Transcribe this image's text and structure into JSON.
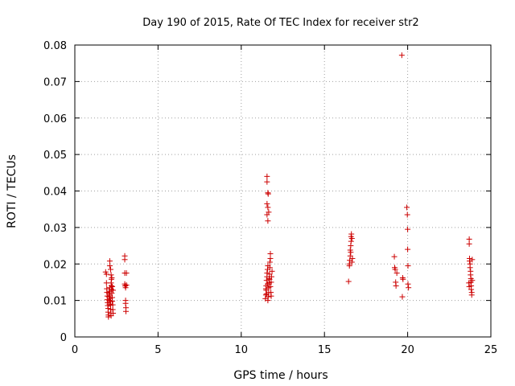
{
  "chart_data": {
    "type": "scatter",
    "title": "Day 190 of 2015, Rate Of TEC Index for receiver str2",
    "xlabel": "GPS time / hours",
    "ylabel": "ROTI / TECUs",
    "xlim": [
      0,
      25
    ],
    "ylim": [
      0,
      0.08
    ],
    "xticks": [
      0,
      5,
      10,
      15,
      20,
      25
    ],
    "xtick_labels": [
      "0",
      "5",
      "10",
      "15",
      "20",
      "25"
    ],
    "yticks": [
      0,
      0.01,
      0.02,
      0.03,
      0.04,
      0.05,
      0.06,
      0.07,
      0.08
    ],
    "ytick_labels": [
      "0",
      "0.01",
      "0.02",
      "0.03",
      "0.04",
      "0.05",
      "0.06",
      "0.07",
      "0.08"
    ],
    "grid": true,
    "marker": "+",
    "color": "#cc0000",
    "series": [
      {
        "name": "ROTI",
        "points": [
          [
            1.85,
            0.0178
          ],
          [
            1.9,
            0.0172
          ],
          [
            1.9,
            0.0148
          ],
          [
            1.92,
            0.0132
          ],
          [
            1.93,
            0.0122
          ],
          [
            1.95,
            0.0112
          ],
          [
            1.95,
            0.0102
          ],
          [
            1.97,
            0.0094
          ],
          [
            1.98,
            0.0086
          ],
          [
            2.0,
            0.0078
          ],
          [
            2.0,
            0.0068
          ],
          [
            2.02,
            0.006
          ],
          [
            2.02,
            0.0055
          ],
          [
            2.05,
            0.012
          ],
          [
            2.05,
            0.011
          ],
          [
            2.07,
            0.01
          ],
          [
            2.08,
            0.009
          ],
          [
            2.1,
            0.0135
          ],
          [
            2.1,
            0.0125
          ],
          [
            2.12,
            0.0115
          ],
          [
            2.12,
            0.0105
          ],
          [
            2.15,
            0.0097
          ],
          [
            2.15,
            0.0087
          ],
          [
            2.15,
            0.0076
          ],
          [
            2.17,
            0.0065
          ],
          [
            2.18,
            0.0058
          ],
          [
            2.18,
            0.0148
          ],
          [
            2.2,
            0.0158
          ],
          [
            2.2,
            0.014
          ],
          [
            2.2,
            0.013
          ],
          [
            2.22,
            0.012
          ],
          [
            2.25,
            0.0108
          ],
          [
            2.25,
            0.0098
          ],
          [
            2.28,
            0.0088
          ],
          [
            2.28,
            0.0075
          ],
          [
            2.3,
            0.0065
          ],
          [
            2.1,
            0.0195
          ],
          [
            2.1,
            0.0208
          ],
          [
            2.15,
            0.0185
          ],
          [
            2.18,
            0.017
          ],
          [
            2.22,
            0.0162
          ],
          [
            2.25,
            0.0138
          ],
          [
            2.3,
            0.0128
          ],
          [
            3.0,
            0.0222
          ],
          [
            3.0,
            0.0212
          ],
          [
            3.0,
            0.0175
          ],
          [
            3.0,
            0.0145
          ],
          [
            3.02,
            0.014
          ],
          [
            3.05,
            0.0135
          ],
          [
            3.05,
            0.01
          ],
          [
            3.05,
            0.0092
          ],
          [
            3.07,
            0.008
          ],
          [
            3.07,
            0.007
          ],
          [
            3.1,
            0.0175
          ],
          [
            3.1,
            0.0142
          ],
          [
            11.55,
            0.044
          ],
          [
            11.55,
            0.0425
          ],
          [
            11.6,
            0.0395
          ],
          [
            11.62,
            0.0392
          ],
          [
            11.55,
            0.0365
          ],
          [
            11.6,
            0.0355
          ],
          [
            11.65,
            0.0342
          ],
          [
            11.55,
            0.0335
          ],
          [
            11.6,
            0.0318
          ],
          [
            11.45,
            0.0105
          ],
          [
            11.48,
            0.0115
          ],
          [
            11.5,
            0.0128
          ],
          [
            11.5,
            0.014
          ],
          [
            11.52,
            0.0155
          ],
          [
            11.55,
            0.0165
          ],
          [
            11.55,
            0.0175
          ],
          [
            11.58,
            0.0185
          ],
          [
            11.6,
            0.0195
          ],
          [
            11.6,
            0.01
          ],
          [
            11.62,
            0.011
          ],
          [
            11.65,
            0.0122
          ],
          [
            11.65,
            0.0135
          ],
          [
            11.67,
            0.0148
          ],
          [
            11.68,
            0.016
          ],
          [
            11.7,
            0.0172
          ],
          [
            11.72,
            0.019
          ],
          [
            11.72,
            0.0205
          ],
          [
            11.75,
            0.0215
          ],
          [
            11.75,
            0.0228
          ],
          [
            11.78,
            0.0122
          ],
          [
            11.8,
            0.0112
          ],
          [
            11.8,
            0.015
          ],
          [
            11.82,
            0.0165
          ],
          [
            11.85,
            0.018
          ],
          [
            11.48,
            0.0132
          ],
          [
            11.52,
            0.0118
          ],
          [
            11.58,
            0.0145
          ],
          [
            11.7,
            0.0158
          ],
          [
            11.75,
            0.0138
          ],
          [
            16.45,
            0.0152
          ],
          [
            16.5,
            0.02
          ],
          [
            16.52,
            0.021
          ],
          [
            16.55,
            0.0222
          ],
          [
            16.55,
            0.0238
          ],
          [
            16.58,
            0.025
          ],
          [
            16.6,
            0.0262
          ],
          [
            16.6,
            0.0275
          ],
          [
            16.62,
            0.0282
          ],
          [
            16.65,
            0.027
          ],
          [
            16.65,
            0.0205
          ],
          [
            16.68,
            0.0215
          ],
          [
            16.5,
            0.0195
          ],
          [
            16.58,
            0.0232
          ],
          [
            19.2,
            0.022
          ],
          [
            19.22,
            0.019
          ],
          [
            19.25,
            0.0185
          ],
          [
            19.28,
            0.015
          ],
          [
            19.3,
            0.014
          ],
          [
            19.35,
            0.0175
          ],
          [
            19.65,
            0.0772
          ],
          [
            19.7,
            0.0162
          ],
          [
            19.72,
            0.0158
          ],
          [
            19.68,
            0.011
          ],
          [
            19.95,
            0.0355
          ],
          [
            19.98,
            0.0335
          ],
          [
            20.0,
            0.0295
          ],
          [
            20.0,
            0.024
          ],
          [
            20.02,
            0.0195
          ],
          [
            20.02,
            0.0145
          ],
          [
            20.05,
            0.0135
          ],
          [
            23.7,
            0.0268
          ],
          [
            23.7,
            0.0255
          ],
          [
            23.72,
            0.0215
          ],
          [
            23.72,
            0.0208
          ],
          [
            23.75,
            0.02
          ],
          [
            23.75,
            0.019
          ],
          [
            23.78,
            0.018
          ],
          [
            23.78,
            0.017
          ],
          [
            23.8,
            0.016
          ],
          [
            23.8,
            0.015
          ],
          [
            23.82,
            0.014
          ],
          [
            23.82,
            0.013
          ],
          [
            23.85,
            0.0122
          ],
          [
            23.85,
            0.0115
          ],
          [
            23.68,
            0.0148
          ],
          [
            23.7,
            0.0138
          ],
          [
            23.88,
            0.0212
          ],
          [
            23.88,
            0.0155
          ]
        ]
      }
    ]
  }
}
